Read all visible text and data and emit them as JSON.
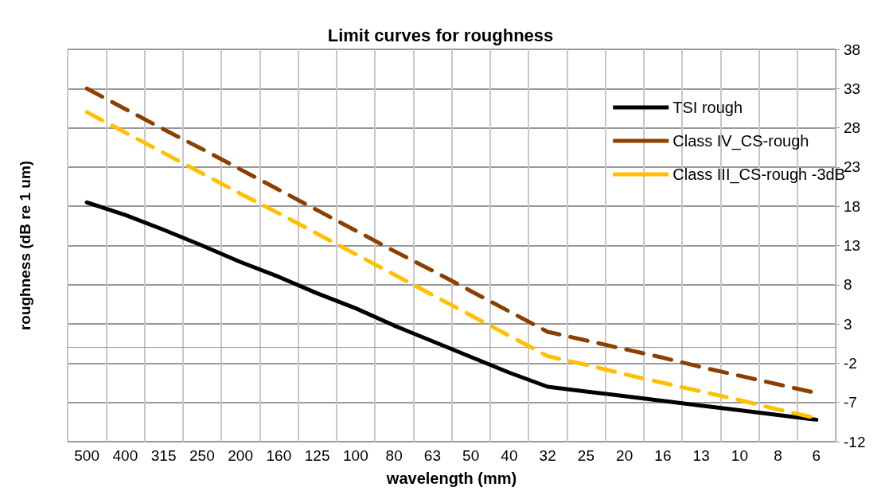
{
  "chart_data": {
    "type": "line",
    "title": "Limit curves for roughness",
    "xlabel": "wavelength (mm)",
    "ylabel": "roughness (dB re 1 um)",
    "categories": [
      "500",
      "400",
      "315",
      "250",
      "200",
      "160",
      "125",
      "100",
      "80",
      "63",
      "50",
      "40",
      "32",
      "25",
      "20",
      "16",
      "13",
      "10",
      "8",
      "6"
    ],
    "series": [
      {
        "name": "TSI rough",
        "color": "#000000",
        "line_style": "solid",
        "values": [
          18.5,
          16.9,
          15.0,
          13.0,
          10.9,
          9.0,
          6.9,
          5.0,
          2.8,
          0.8,
          -1.2,
          -3.2,
          -5.0,
          -5.6,
          -6.2,
          -6.8,
          -7.4,
          -8.0,
          -8.6,
          -9.2
        ]
      },
      {
        "name": "Class IV_CS-rough",
        "color": "#8b4000",
        "line_style": "dashed",
        "values": [
          33.0,
          30.4,
          27.8,
          25.3,
          22.7,
          20.1,
          17.5,
          14.9,
          12.3,
          9.8,
          7.2,
          4.6,
          2.0,
          0.9,
          -0.2,
          -1.3,
          -2.5,
          -3.6,
          -4.7,
          -5.8
        ]
      },
      {
        "name": "Class III_CS-rough -3dB",
        "color": "#ffc000",
        "line_style": "dashed",
        "values": [
          30.0,
          27.4,
          24.8,
          22.2,
          19.6,
          17.1,
          14.5,
          11.9,
          9.3,
          6.7,
          4.1,
          1.5,
          -1.1,
          -2.2,
          -3.4,
          -4.5,
          -5.6,
          -6.7,
          -7.9,
          -9.0
        ]
      }
    ],
    "ylim": [
      -12,
      38
    ],
    "yticks": [
      -12,
      -7,
      -2,
      3,
      8,
      13,
      18,
      23,
      28,
      33,
      38
    ],
    "grid": true,
    "legend": "top right",
    "marker": "none"
  }
}
